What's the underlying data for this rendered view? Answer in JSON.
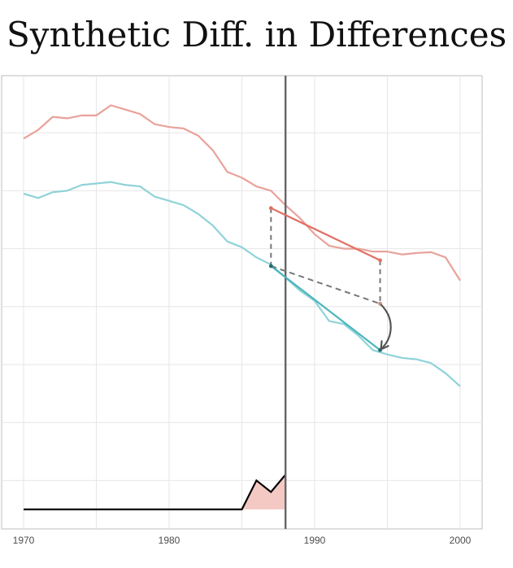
{
  "title": "Synthetic Diff. in Differences",
  "chart_data": {
    "type": "line",
    "title": "Synthetic Diff. in Differences",
    "xlabel": "",
    "ylabel": "",
    "xlim": [
      1970,
      2001.5
    ],
    "ylim": [
      0,
      150
    ],
    "x_ticks": [
      1970,
      1980,
      1990,
      2000
    ],
    "grid": true,
    "treatment_year": 1988,
    "colors": {
      "treated": "#e8a29a",
      "treated_dark": "#e07066",
      "control": "#8fd3d8",
      "control_dark": "#4cb6be",
      "counterfactual": "#777777",
      "arrow": "#555555",
      "weights_fill": "#f4c9c4",
      "weights_line": "#000000",
      "treatment_line": "#666666",
      "grid": "#e6e6e6",
      "panel_border": "#bdbdbd"
    },
    "series": [
      {
        "role": "treated",
        "x": [
          1970,
          1971,
          1972,
          1973,
          1974,
          1975,
          1976,
          1977,
          1978,
          1979,
          1980,
          1981,
          1982,
          1983,
          1984,
          1985,
          1986,
          1987,
          1988,
          1989,
          1990,
          1991,
          1992,
          1993,
          1994,
          1995,
          1996,
          1997,
          1998,
          1999,
          2000
        ],
        "values": [
          128,
          131,
          135.5,
          135,
          136,
          136,
          139.5,
          138,
          136.5,
          133,
          132,
          131.5,
          129,
          124,
          116.5,
          114.5,
          111.5,
          110,
          105,
          100.5,
          95,
          91,
          90,
          90,
          89,
          89,
          88,
          88.5,
          88.8,
          87,
          79
        ]
      },
      {
        "role": "control",
        "x": [
          1970,
          1971,
          1972,
          1973,
          1974,
          1975,
          1976,
          1977,
          1978,
          1979,
          1980,
          1981,
          1982,
          1983,
          1984,
          1985,
          1986,
          1987,
          1988,
          1989,
          1990,
          1991,
          1992,
          1993,
          1994,
          1995,
          1996,
          1997,
          1998,
          1999,
          2000
        ],
        "values": [
          109,
          107.5,
          109.5,
          110,
          112,
          112.5,
          113,
          112,
          111.5,
          108,
          106.5,
          105,
          102,
          98,
          92.5,
          90.5,
          87,
          84.5,
          80,
          75.5,
          72,
          65,
          64,
          60,
          55,
          53.5,
          52.3,
          51.8,
          50.5,
          47,
          42.5
        ]
      }
    ],
    "pre_period_mean": {
      "x": 1987,
      "treated": 104,
      "control": 84
    },
    "post_period_mean": {
      "x": 1994.5,
      "treated": 86,
      "control": 55,
      "counterfactual": 71
    },
    "time_weights": {
      "x": [
        1970,
        1985,
        1986,
        1987,
        1988
      ],
      "values": [
        0,
        0,
        10,
        6,
        12
      ]
    }
  }
}
